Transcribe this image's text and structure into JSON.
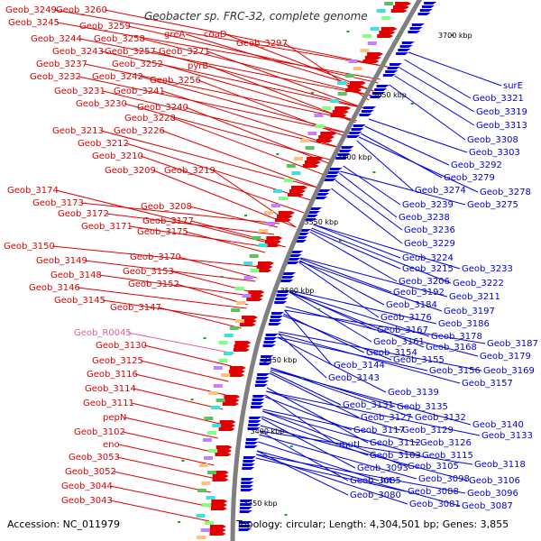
{
  "header": {
    "title": "Geobacter sp. FRC-32, complete genome"
  },
  "footer": {
    "accession": "Accession: NC_011979",
    "summary": "Topology: circular; Length: 4,304,501 bp; Genes: 3,855"
  },
  "colors": {
    "forward": "#e00000",
    "reverse": "#0000e0",
    "rna": "#e060a0",
    "backbone": "#808080"
  },
  "kbp_ticks": [
    "3700 kbp",
    "3650 kbp",
    "3600 kbp",
    "3550 kbp",
    "3500 kbp",
    "3450 kbp",
    "3400 kbp",
    "3350 kbp"
  ],
  "left_labels": [
    {
      "text": "Geob_3249",
      "type": "forward"
    },
    {
      "text": "Geob_3260",
      "type": "forward"
    },
    {
      "text": "Geob_3245",
      "type": "forward"
    },
    {
      "text": "Geob_3259",
      "type": "forward"
    },
    {
      "text": "greA",
      "type": "forward"
    },
    {
      "text": "coaD",
      "type": "forward"
    },
    {
      "text": "Geob_3244",
      "type": "forward"
    },
    {
      "text": "Geob_3258",
      "type": "forward"
    },
    {
      "text": "Geob_3297",
      "type": "forward"
    },
    {
      "text": "Geob_3243",
      "type": "forward"
    },
    {
      "text": "Geob_3257",
      "type": "forward"
    },
    {
      "text": "Geob_3271",
      "type": "forward"
    },
    {
      "text": "Geob_3237",
      "type": "forward"
    },
    {
      "text": "Geob_3252",
      "type": "forward"
    },
    {
      "text": "pyrB",
      "type": "forward"
    },
    {
      "text": "Geob_3232",
      "type": "forward"
    },
    {
      "text": "Geob_3242",
      "type": "forward"
    },
    {
      "text": "Geob_3256",
      "type": "forward"
    },
    {
      "text": "Geob_3231",
      "type": "forward"
    },
    {
      "text": "Geob_3241",
      "type": "forward"
    },
    {
      "text": "Geob_3230",
      "type": "forward"
    },
    {
      "text": "Geob_3240",
      "type": "forward"
    },
    {
      "text": "Geob_3228",
      "type": "forward"
    },
    {
      "text": "Geob_3213",
      "type": "forward"
    },
    {
      "text": "Geob_3226",
      "type": "forward"
    },
    {
      "text": "Geob_3212",
      "type": "forward"
    },
    {
      "text": "Geob_3210",
      "type": "forward"
    },
    {
      "text": "Geob_3209",
      "type": "forward"
    },
    {
      "text": "Geob_3219",
      "type": "forward"
    },
    {
      "text": "Geob_3174",
      "type": "forward"
    },
    {
      "text": "Geob_3173",
      "type": "forward"
    },
    {
      "text": "Geob_3208",
      "type": "forward"
    },
    {
      "text": "Geob_3172",
      "type": "forward"
    },
    {
      "text": "Geob_3177",
      "type": "forward"
    },
    {
      "text": "Geob_3171",
      "type": "forward"
    },
    {
      "text": "Geob_3175",
      "type": "forward"
    },
    {
      "text": "Geob_3150",
      "type": "forward"
    },
    {
      "text": "Geob_3170",
      "type": "forward"
    },
    {
      "text": "Geob_3149",
      "type": "forward"
    },
    {
      "text": "Geob_3153",
      "type": "forward"
    },
    {
      "text": "Geob_3148",
      "type": "forward"
    },
    {
      "text": "Geob_3152",
      "type": "forward"
    },
    {
      "text": "Geob_3146",
      "type": "forward"
    },
    {
      "text": "Geob_3145",
      "type": "forward"
    },
    {
      "text": "Geob_3147",
      "type": "forward"
    },
    {
      "text": "Geob_R0045",
      "type": "rna"
    },
    {
      "text": "Geob_3130",
      "type": "forward"
    },
    {
      "text": "Geob_3125",
      "type": "forward"
    },
    {
      "text": "Geob_3116",
      "type": "forward"
    },
    {
      "text": "Geob_3114",
      "type": "forward"
    },
    {
      "text": "Geob_3111",
      "type": "forward"
    },
    {
      "text": "pepN",
      "type": "forward"
    },
    {
      "text": "Geob_3102",
      "type": "forward"
    },
    {
      "text": "eno",
      "type": "forward"
    },
    {
      "text": "Geob_3053",
      "type": "forward"
    },
    {
      "text": "Geob_3052",
      "type": "forward"
    },
    {
      "text": "Geob_3044",
      "type": "forward"
    },
    {
      "text": "Geob_3043",
      "type": "forward"
    }
  ],
  "right_labels": [
    {
      "text": "surE"
    },
    {
      "text": "Geob_3321"
    },
    {
      "text": "Geob_3319"
    },
    {
      "text": "Geob_3313"
    },
    {
      "text": "Geob_3308"
    },
    {
      "text": "Geob_3303"
    },
    {
      "text": "Geob_3292"
    },
    {
      "text": "Geob_3279"
    },
    {
      "text": "Geob_3274"
    },
    {
      "text": "Geob_3278"
    },
    {
      "text": "Geob_3275"
    },
    {
      "text": "Geob_3239"
    },
    {
      "text": "Geob_3238"
    },
    {
      "text": "Geob_3236"
    },
    {
      "text": "Geob_3229"
    },
    {
      "text": "Geob_3224"
    },
    {
      "text": "Geob_3215"
    },
    {
      "text": "Geob_3233"
    },
    {
      "text": "Geob_3206"
    },
    {
      "text": "Geob_3222"
    },
    {
      "text": "Geob_3192"
    },
    {
      "text": "Geob_3211"
    },
    {
      "text": "Geob_3184"
    },
    {
      "text": "Geob_3197"
    },
    {
      "text": "Geob_3176"
    },
    {
      "text": "Geob_3186"
    },
    {
      "text": "Geob_3167"
    },
    {
      "text": "Geob_3178"
    },
    {
      "text": "Geob_3161"
    },
    {
      "text": "Geob_3168"
    },
    {
      "text": "Geob_3187"
    },
    {
      "text": "Geob_3154"
    },
    {
      "text": "Geob_3155"
    },
    {
      "text": "Geob_3179"
    },
    {
      "text": "Geob_3144"
    },
    {
      "text": "Geob_3156"
    },
    {
      "text": "Geob_3169"
    },
    {
      "text": "Geob_3143"
    },
    {
      "text": "Geob_3157"
    },
    {
      "text": "Geob_3139"
    },
    {
      "text": "Geob_3131"
    },
    {
      "text": "Geob_3135"
    },
    {
      "text": "Geob_3127"
    },
    {
      "text": "Geob_3132"
    },
    {
      "text": "Geob_3140"
    },
    {
      "text": "Geob_3117"
    },
    {
      "text": "Geob_3129"
    },
    {
      "text": "Geob_3133"
    },
    {
      "text": "mutL"
    },
    {
      "text": "Geob_3112"
    },
    {
      "text": "Geob_3126"
    },
    {
      "text": "Geob_3103"
    },
    {
      "text": "Geob_3115"
    },
    {
      "text": "Geob_3093"
    },
    {
      "text": "Geob_3105"
    },
    {
      "text": "Geob_3118"
    },
    {
      "text": "lnt"
    },
    {
      "text": "Geob_3098"
    },
    {
      "text": "Geob_3085"
    },
    {
      "text": "Geob_3106"
    },
    {
      "text": "Geob_3088"
    },
    {
      "text": "Geob_3096"
    },
    {
      "text": "Geob_3080"
    },
    {
      "text": "Geob_3081"
    },
    {
      "text": "Geob_3087"
    }
  ]
}
